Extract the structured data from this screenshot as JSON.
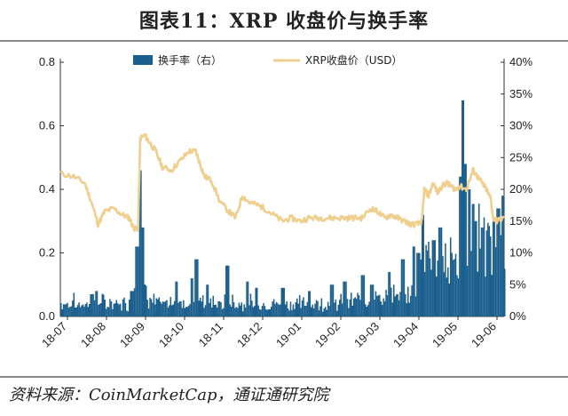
{
  "title": "图表11：XRP 收盘价与换手率",
  "source": "资料来源：CoinMarketCap，通证通研究院",
  "chart_data": {
    "type": "bar+line",
    "legend": [
      "换手率（右）",
      "XRP收盘价（USD）"
    ],
    "legend_position": "top",
    "y_left": {
      "range": [
        0,
        0.8
      ],
      "ticks": [
        "0.0",
        "0.2",
        "0.4",
        "0.6",
        "0.8"
      ]
    },
    "y_right": {
      "range": [
        0,
        40
      ],
      "ticks": [
        "0%",
        "5%",
        "10%",
        "15%",
        "20%",
        "25%",
        "30%",
        "35%",
        "40%"
      ]
    },
    "x_ticks": [
      "18-07",
      "18-08",
      "18-09",
      "18-10",
      "18-11",
      "18-12",
      "19-01",
      "19-02",
      "19-03",
      "19-04",
      "19-05",
      "19-06"
    ],
    "colors": {
      "bar": "#1b5f8e",
      "line": "#f0cf8e"
    },
    "price_series": [
      [
        0.0,
        0.45
      ],
      [
        0.03,
        0.44
      ],
      [
        0.055,
        0.42
      ],
      [
        0.07,
        0.36
      ],
      [
        0.085,
        0.29
      ],
      [
        0.1,
        0.33
      ],
      [
        0.12,
        0.34
      ],
      [
        0.14,
        0.32
      ],
      [
        0.155,
        0.31
      ],
      [
        0.165,
        0.28
      ],
      [
        0.175,
        0.27
      ],
      [
        0.18,
        0.56
      ],
      [
        0.19,
        0.57
      ],
      [
        0.2,
        0.55
      ],
      [
        0.215,
        0.52
      ],
      [
        0.23,
        0.47
      ],
      [
        0.25,
        0.46
      ],
      [
        0.27,
        0.49
      ],
      [
        0.29,
        0.52
      ],
      [
        0.305,
        0.52
      ],
      [
        0.315,
        0.48
      ],
      [
        0.325,
        0.44
      ],
      [
        0.34,
        0.43
      ],
      [
        0.36,
        0.36
      ],
      [
        0.38,
        0.33
      ],
      [
        0.395,
        0.31
      ],
      [
        0.41,
        0.38
      ],
      [
        0.425,
        0.36
      ],
      [
        0.445,
        0.35
      ],
      [
        0.46,
        0.34
      ],
      [
        0.48,
        0.32
      ],
      [
        0.5,
        0.3
      ],
      [
        0.52,
        0.31
      ],
      [
        0.54,
        0.3
      ],
      [
        0.56,
        0.31
      ],
      [
        0.58,
        0.31
      ],
      [
        0.6,
        0.31
      ],
      [
        0.62,
        0.31
      ],
      [
        0.64,
        0.31
      ],
      [
        0.66,
        0.31
      ],
      [
        0.68,
        0.31
      ],
      [
        0.7,
        0.34
      ],
      [
        0.715,
        0.33
      ],
      [
        0.73,
        0.31
      ],
      [
        0.745,
        0.32
      ],
      [
        0.76,
        0.31
      ],
      [
        0.775,
        0.3
      ],
      [
        0.79,
        0.29
      ],
      [
        0.805,
        0.29
      ],
      [
        0.815,
        0.3
      ],
      [
        0.82,
        0.4
      ],
      [
        0.83,
        0.38
      ],
      [
        0.84,
        0.42
      ],
      [
        0.85,
        0.39
      ],
      [
        0.86,
        0.41
      ],
      [
        0.87,
        0.42
      ],
      [
        0.88,
        0.41
      ],
      [
        0.89,
        0.4
      ],
      [
        0.9,
        0.41
      ],
      [
        0.915,
        0.4
      ],
      [
        0.93,
        0.46
      ],
      [
        0.94,
        0.44
      ],
      [
        0.95,
        0.42
      ],
      [
        0.96,
        0.4
      ],
      [
        0.97,
        0.37
      ],
      [
        0.975,
        0.31
      ],
      [
        0.985,
        0.3
      ],
      [
        1.0,
        0.31
      ]
    ],
    "turnover_spikes": [
      [
        0.027,
        2.5
      ],
      [
        0.07,
        3.5
      ],
      [
        0.08,
        4.0
      ],
      [
        0.16,
        4.0
      ],
      [
        0.172,
        11.0
      ],
      [
        0.178,
        23.0
      ],
      [
        0.182,
        9.0
      ],
      [
        0.185,
        14.0
      ],
      [
        0.26,
        5.5
      ],
      [
        0.295,
        6.0
      ],
      [
        0.305,
        9.0
      ],
      [
        0.33,
        5.0
      ],
      [
        0.375,
        8.0
      ],
      [
        0.42,
        5.5
      ],
      [
        0.44,
        4.5
      ],
      [
        0.5,
        4.5
      ],
      [
        0.56,
        4.0
      ],
      [
        0.61,
        5.0
      ],
      [
        0.64,
        5.5
      ],
      [
        0.68,
        6.5
      ],
      [
        0.7,
        5.0
      ],
      [
        0.74,
        7.0
      ],
      [
        0.77,
        9.0
      ],
      [
        0.795,
        11.0
      ],
      [
        0.805,
        10.0
      ],
      [
        0.815,
        16.0
      ],
      [
        0.84,
        12.0
      ],
      [
        0.855,
        14.0
      ],
      [
        0.88,
        10.0
      ],
      [
        0.9,
        22.0
      ],
      [
        0.905,
        34.0
      ],
      [
        0.912,
        24.0
      ],
      [
        0.92,
        20.0
      ],
      [
        0.935,
        15.0
      ],
      [
        0.95,
        14.0
      ],
      [
        0.96,
        12.0
      ],
      [
        0.975,
        15.0
      ],
      [
        0.985,
        17.0
      ],
      [
        0.995,
        19.0
      ]
    ]
  }
}
